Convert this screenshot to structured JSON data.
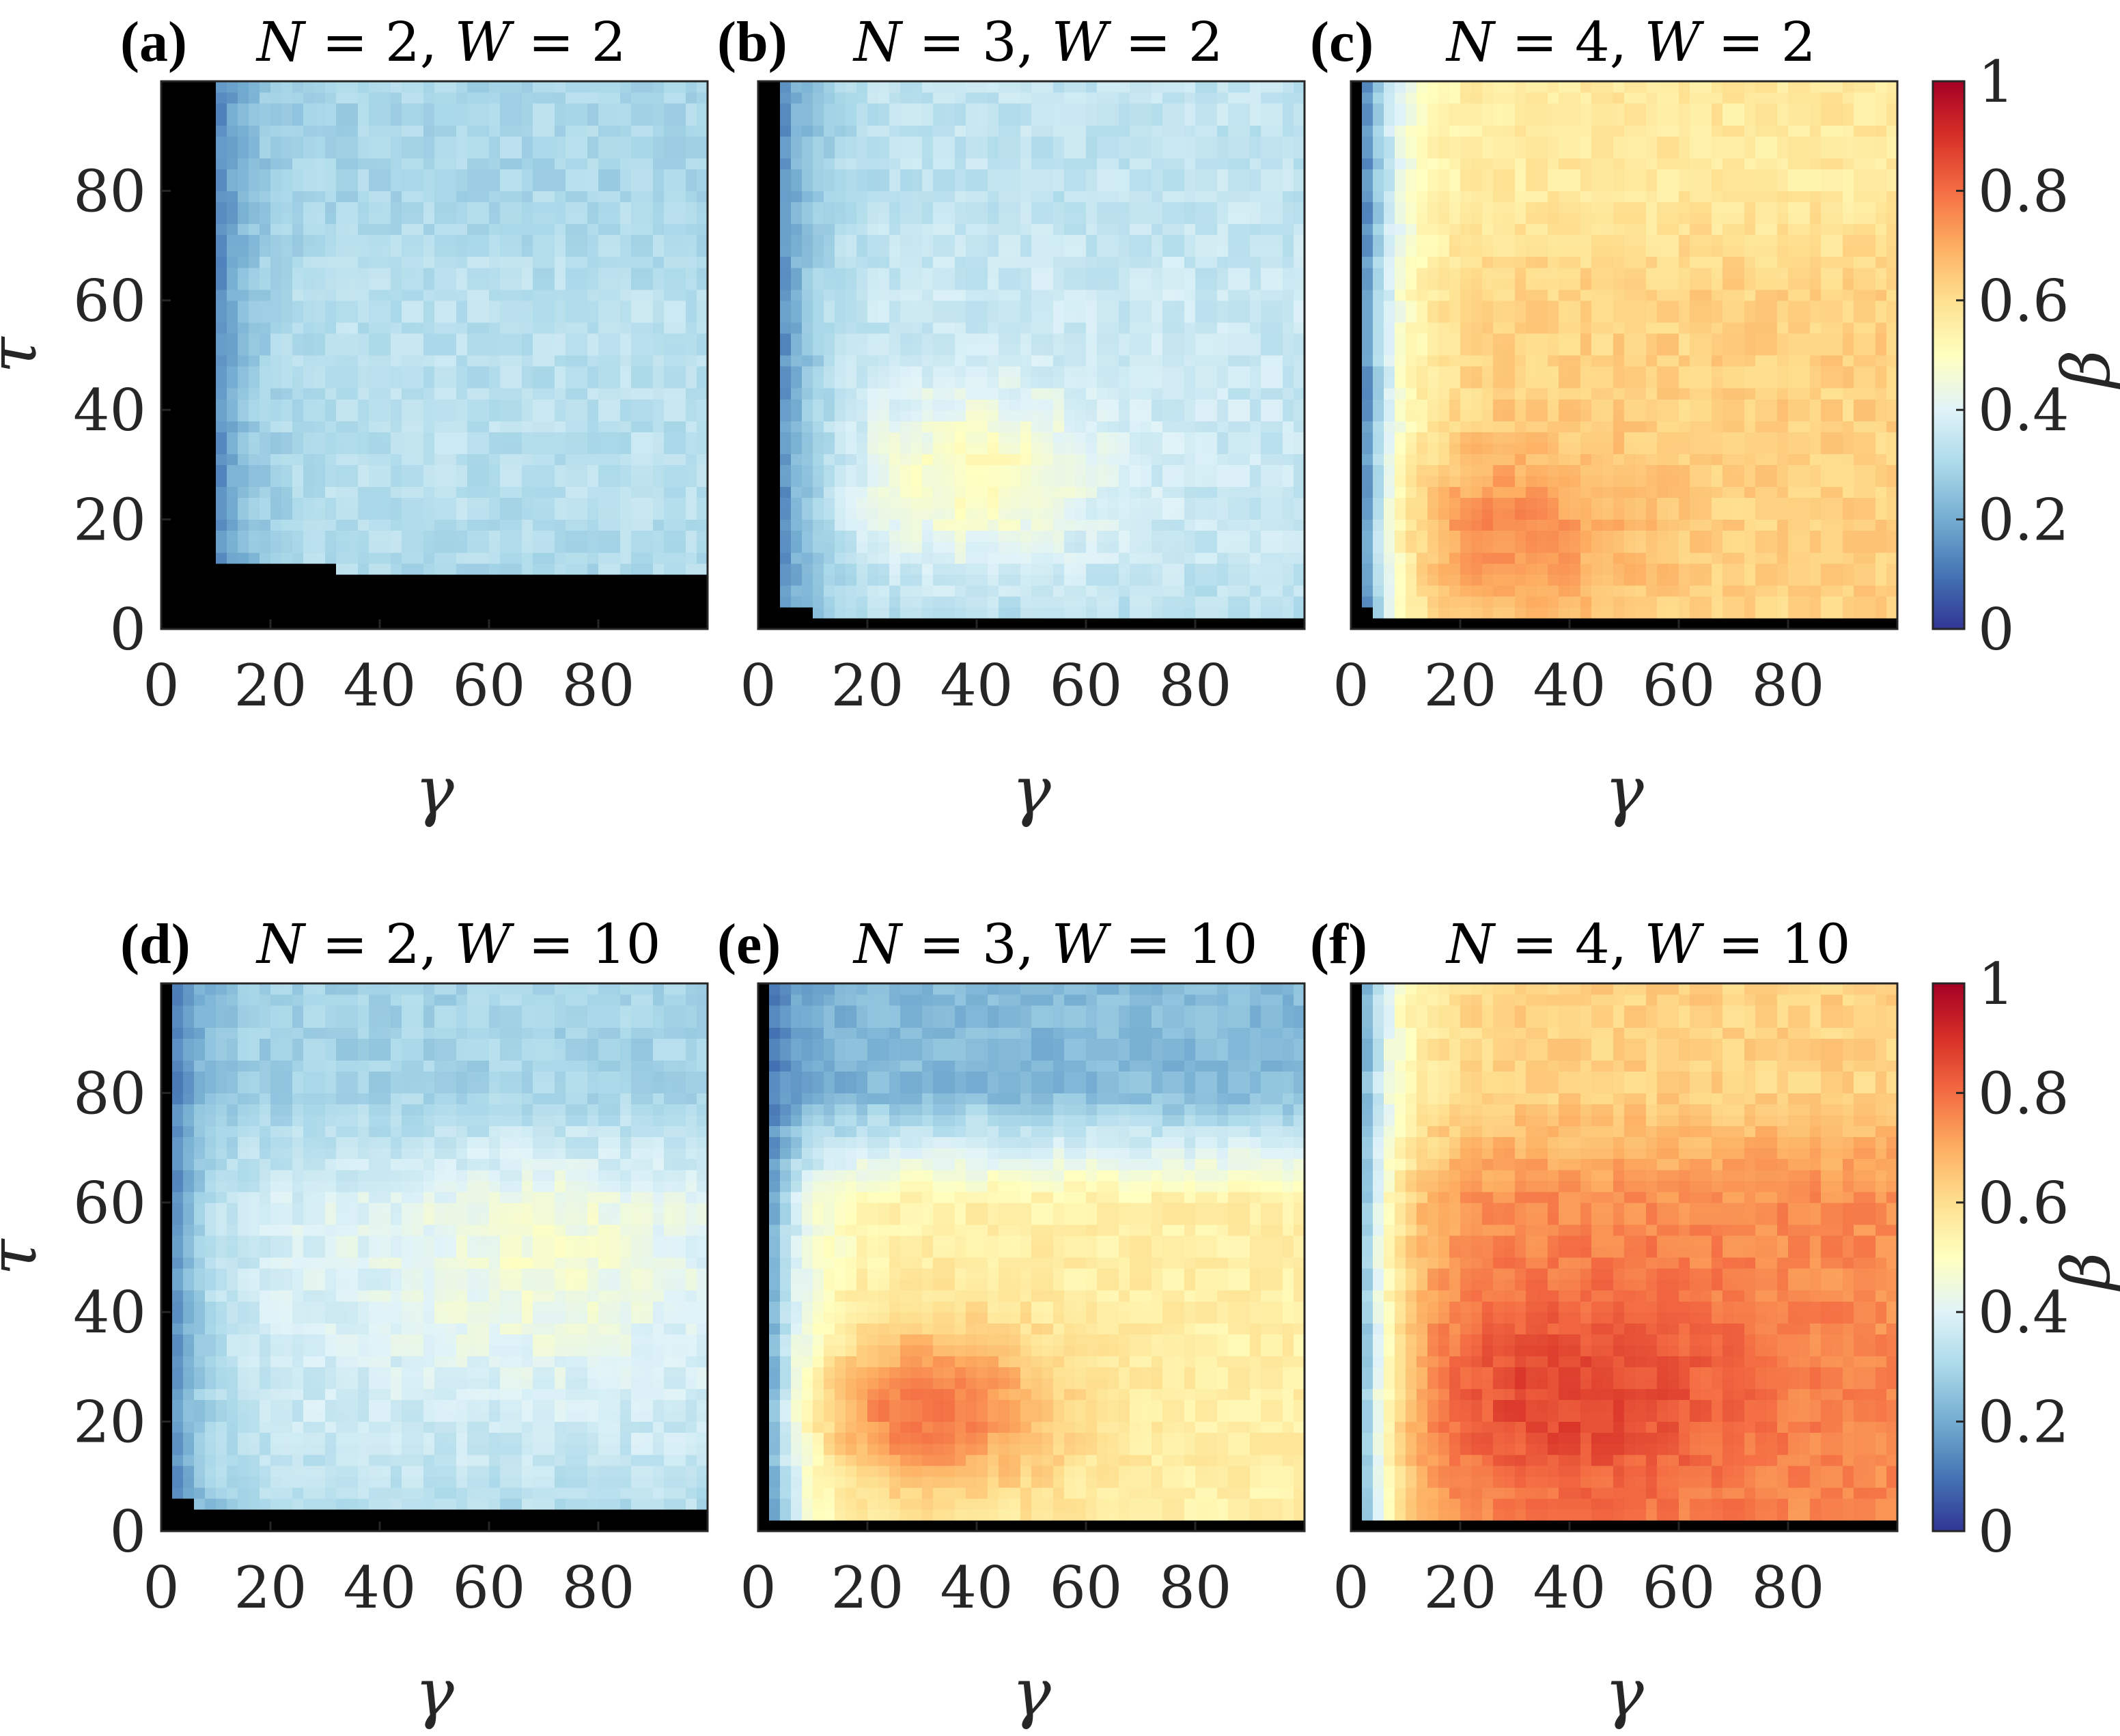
{
  "chart_data": {
    "type": "heatmap",
    "colorbar": {
      "label": "β",
      "range": [
        0,
        1
      ],
      "ticks": [
        "0",
        "0.2",
        "0.4",
        "0.6",
        "0.8",
        "1"
      ],
      "colormap": [
        "#313695",
        "#4575b4",
        "#74add1",
        "#abd9e9",
        "#e0f3f8",
        "#ffffbf",
        "#fee090",
        "#fdae61",
        "#f46d43",
        "#d73027",
        "#a50026"
      ],
      "undefined_color": "#000000"
    },
    "xlabel": "γ",
    "ylabel": "τ",
    "xlim": [
      0,
      100
    ],
    "ylim": [
      0,
      100
    ],
    "xticks": [
      "0",
      "20",
      "40",
      "60",
      "80"
    ],
    "yticks": [
      "0",
      "20",
      "40",
      "60",
      "80"
    ],
    "panels": [
      {
        "label": "(a)",
        "N": "2",
        "W": "2",
        "model": {
          "boundary": [
            9,
            2.0,
            10
          ],
          "bottom": [
            9,
            3
          ],
          "plateau": 0.33,
          "peak": [
            0,
            0,
            0.0,
            10,
            10
          ],
          "topShift": -0.03,
          "bottomBand": [
            0.05,
            12
          ],
          "blackCorner": [
            32,
            13
          ],
          "noise": 0.05
        }
      },
      {
        "label": "(b)",
        "N": "3",
        "W": "2",
        "model": {
          "boundary": [
            3,
            2.5,
            8
          ],
          "bottom": [
            2,
            3
          ],
          "plateau": 0.36,
          "peak": [
            0.15,
            40,
            28,
            22,
            15
          ],
          "topShift": -0.02,
          "bottomBand": [
            0.05,
            10
          ],
          "blackCorner": [
            0,
            0
          ],
          "noise": 0.05
        }
      },
      {
        "label": "(c)",
        "N": "4",
        "W": "2",
        "model": {
          "boundary": [
            2,
            2.0,
            5
          ],
          "bottom": [
            1,
            1.2
          ],
          "plateau": 0.63,
          "peak": [
            0.13,
            25,
            18,
            25,
            15
          ],
          "topShift": -0.06,
          "bottomBand": [
            0.0,
            5
          ],
          "blackCorner": [
            0,
            0
          ],
          "noise": 0.05
        }
      },
      {
        "label": "(d)",
        "N": "2",
        "W": "10",
        "model": {
          "boundary": [
            1,
            3.0,
            6
          ],
          "bottom": [
            4,
            2
          ],
          "plateau": 0.39,
          "peak": [
            0.08,
            70,
            50,
            25,
            20
          ],
          "topShift": -0.1,
          "bottomBand": [
            0.1,
            15
          ],
          "blackCorner": [
            30,
            5
          ],
          "noise": 0.05
        }
      },
      {
        "label": "(e)",
        "N": "3",
        "W": "10",
        "model": {
          "boundary": [
            1,
            2.0,
            5
          ],
          "bottom": [
            1,
            1.5
          ],
          "plateau": 0.55,
          "peak": [
            0.24,
            30,
            22,
            25,
            15
          ],
          "topShift": -0.32,
          "bottomBand": [
            0.0,
            5
          ],
          "blackCorner": [
            0,
            0
          ],
          "noise": 0.05
        }
      },
      {
        "label": "(f)",
        "N": "4",
        "W": "10",
        "model": {
          "boundary": [
            1,
            1.5,
            4
          ],
          "bottom": [
            1,
            1.0
          ],
          "plateau": 0.75,
          "peak": [
            0.12,
            40,
            25,
            35,
            20
          ],
          "topShift": -0.12,
          "bottomBand": [
            0.0,
            4
          ],
          "blackCorner": [
            0,
            0
          ],
          "noise": 0.05
        }
      }
    ]
  }
}
